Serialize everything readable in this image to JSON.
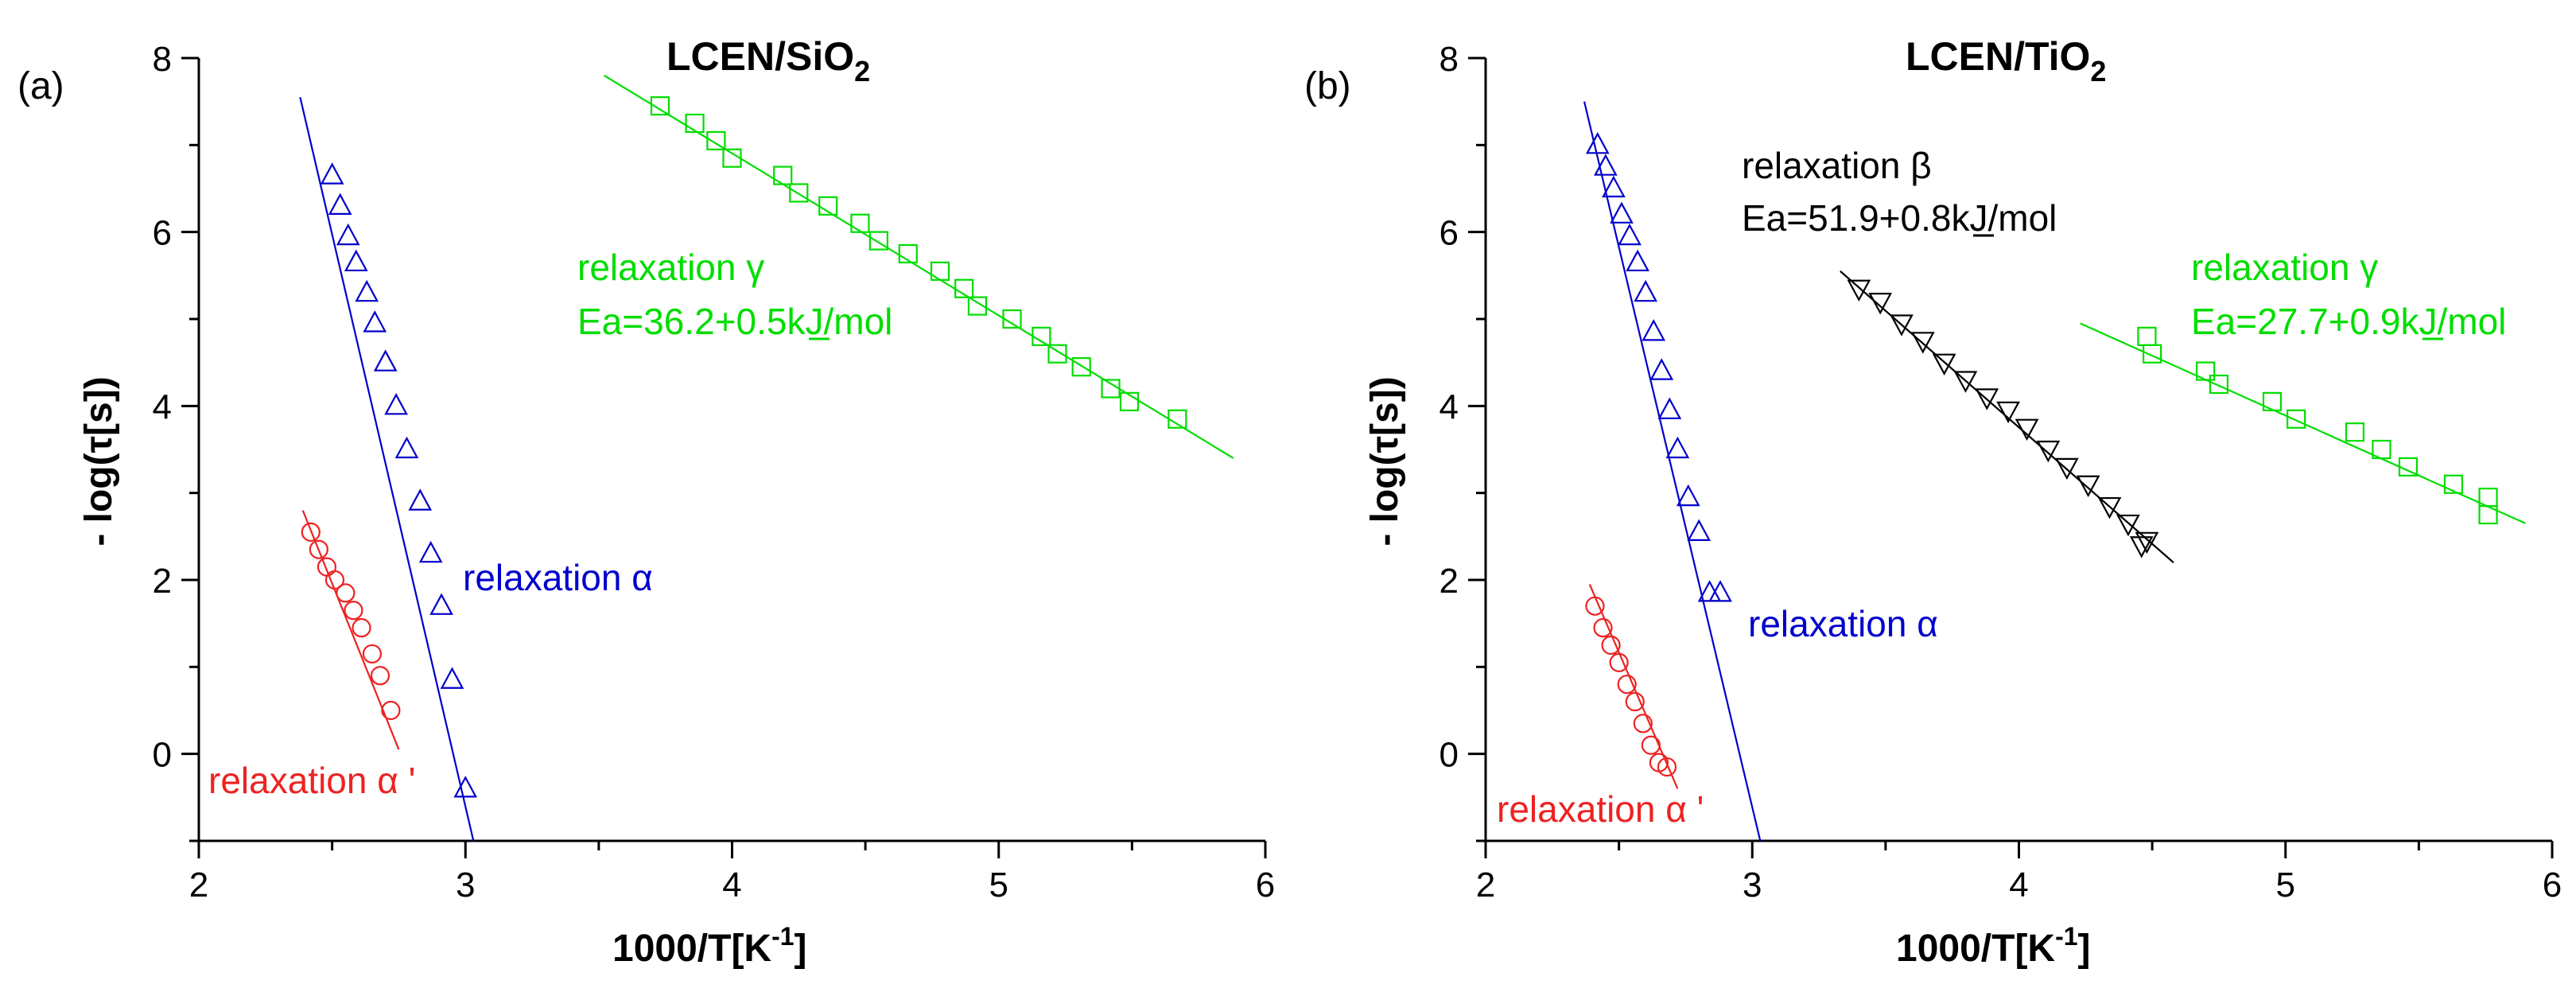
{
  "colors": {
    "alpha": "#0000cc",
    "alpha_prime": "#ee2222",
    "beta": "#000000",
    "gamma": "#00dd00"
  },
  "chart_data": [
    {
      "type": "scatter",
      "panel_label": "(a)",
      "title": "LCEN/SiO2",
      "title_main": "LCEN/SiO",
      "title_sub": "2",
      "xlabel": "1000/T[K",
      "xlabel_sup": "-1",
      "xlabel_end": "]",
      "ylabel": "- log(τ[s])",
      "xlim": [
        2,
        6
      ],
      "ylim": [
        -1,
        8
      ],
      "xticks": [
        2,
        3,
        4,
        5,
        6
      ],
      "yticks": [
        0,
        2,
        4,
        6,
        8
      ],
      "series": [
        {
          "name": "relaxation α",
          "label": "relaxation α",
          "color_key": "alpha",
          "marker": "triangle-up",
          "x": [
            2.5,
            2.53,
            2.56,
            2.59,
            2.63,
            2.66,
            2.7,
            2.74,
            2.78,
            2.83,
            2.87,
            2.91,
            2.95,
            3.0
          ],
          "y": [
            6.65,
            6.3,
            5.95,
            5.65,
            5.3,
            4.95,
            4.5,
            4.0,
            3.5,
            2.9,
            2.3,
            1.7,
            0.85,
            -0.4
          ],
          "fit": {
            "x1": 2.38,
            "y1": 7.55,
            "x2": 3.03,
            "y2": -1.0
          }
        },
        {
          "name": "relaxation α '",
          "label": "relaxation α '",
          "color_key": "alpha_prime",
          "marker": "circle",
          "x": [
            2.42,
            2.45,
            2.48,
            2.51,
            2.55,
            2.58,
            2.61,
            2.65,
            2.68,
            2.72
          ],
          "y": [
            2.55,
            2.35,
            2.15,
            2.0,
            1.85,
            1.65,
            1.45,
            1.15,
            0.9,
            0.5
          ],
          "fit": {
            "x1": 2.39,
            "y1": 2.8,
            "x2": 2.75,
            "y2": 0.05
          }
        },
        {
          "name": "relaxation γ",
          "label": "relaxation γ",
          "label2": "Ea=36.2+0.5kJ/mol",
          "color_key": "gamma",
          "marker": "square",
          "x": [
            3.73,
            3.86,
            3.94,
            4.0,
            4.19,
            4.25,
            4.36,
            4.48,
            4.55,
            4.66,
            4.78,
            4.87,
            4.92,
            5.05,
            5.16,
            5.22,
            5.31,
            5.42,
            5.49,
            5.67
          ],
          "y": [
            7.45,
            7.25,
            7.05,
            6.85,
            6.65,
            6.45,
            6.3,
            6.1,
            5.9,
            5.75,
            5.55,
            5.35,
            5.15,
            5.0,
            4.8,
            4.6,
            4.45,
            4.2,
            4.05,
            3.85
          ],
          "fit": {
            "x1": 3.52,
            "y1": 7.8,
            "x2": 5.88,
            "y2": 3.4
          }
        }
      ]
    },
    {
      "type": "scatter",
      "panel_label": "(b)",
      "title": "LCEN/TiO2",
      "title_main": "LCEN/TiO",
      "title_sub": "2",
      "xlabel": "1000/T[K",
      "xlabel_sup": "-1",
      "xlabel_end": "]",
      "ylabel": "- log(τ[s])",
      "xlim": [
        2,
        6
      ],
      "ylim": [
        -1,
        8
      ],
      "xticks": [
        2,
        3,
        4,
        5,
        6
      ],
      "yticks": [
        0,
        2,
        4,
        6,
        8
      ],
      "series": [
        {
          "name": "relaxation α",
          "label": "relaxation α",
          "color_key": "alpha",
          "marker": "triangle-up",
          "x": [
            2.42,
            2.45,
            2.48,
            2.51,
            2.54,
            2.57,
            2.6,
            2.63,
            2.66,
            2.69,
            2.72,
            2.76,
            2.8,
            2.84,
            2.88
          ],
          "y": [
            7.0,
            6.75,
            6.5,
            6.2,
            5.95,
            5.65,
            5.3,
            4.85,
            4.4,
            3.95,
            3.5,
            2.95,
            2.55,
            1.85,
            1.85
          ],
          "fit": {
            "x1": 2.37,
            "y1": 7.5,
            "x2": 3.03,
            "y2": -1.0
          }
        },
        {
          "name": "relaxation α '",
          "label": "relaxation α '",
          "color_key": "alpha_prime",
          "marker": "circle",
          "x": [
            2.41,
            2.44,
            2.47,
            2.5,
            2.53,
            2.56,
            2.59,
            2.62,
            2.65,
            2.68
          ],
          "y": [
            1.7,
            1.45,
            1.25,
            1.05,
            0.8,
            0.6,
            0.35,
            0.1,
            -0.1,
            -0.15
          ],
          "fit": {
            "x1": 2.39,
            "y1": 1.95,
            "x2": 2.72,
            "y2": -0.4
          }
        },
        {
          "name": "relaxation β",
          "label": "relaxation β",
          "label2": "Ea=51.9+0.8kJ/mol",
          "color_key": "beta",
          "marker": "triangle-down",
          "x": [
            3.4,
            3.48,
            3.56,
            3.64,
            3.72,
            3.8,
            3.88,
            3.96,
            4.03,
            4.11,
            4.18,
            4.26,
            4.34,
            4.41,
            4.46,
            4.48
          ],
          "y": [
            5.35,
            5.2,
            4.95,
            4.75,
            4.5,
            4.3,
            4.1,
            3.95,
            3.75,
            3.5,
            3.3,
            3.1,
            2.85,
            2.65,
            2.4,
            2.45
          ],
          "fit": {
            "x1": 3.33,
            "y1": 5.55,
            "x2": 4.58,
            "y2": 2.2
          }
        },
        {
          "name": "relaxation γ",
          "label": "relaxation γ",
          "label2": "Ea=27.7+0.9kJ/mol",
          "color_key": "gamma",
          "marker": "square",
          "x": [
            4.48,
            4.5,
            4.7,
            4.75,
            4.95,
            5.04,
            5.26,
            5.36,
            5.46,
            5.63,
            5.76,
            5.76
          ],
          "y": [
            4.8,
            4.6,
            4.4,
            4.25,
            4.05,
            3.85,
            3.7,
            3.5,
            3.3,
            3.1,
            2.95,
            2.75
          ],
          "fit": {
            "x1": 4.23,
            "y1": 4.95,
            "x2": 5.9,
            "y2": 2.65
          }
        }
      ]
    }
  ]
}
